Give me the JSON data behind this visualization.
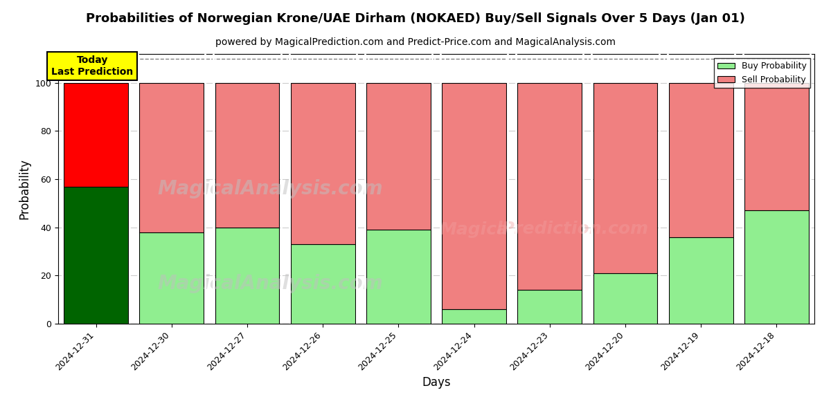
{
  "title": "Probabilities of Norwegian Krone/UAE Dirham (NOKAED) Buy/Sell Signals Over 5 Days (Jan 01)",
  "subtitle": "powered by MagicalPrediction.com and Predict-Price.com and MagicalAnalysis.com",
  "xlabel": "Days",
  "ylabel": "Probability",
  "dates": [
    "2024-12-31",
    "2024-12-30",
    "2024-12-27",
    "2024-12-26",
    "2024-12-25",
    "2024-12-24",
    "2024-12-23",
    "2024-12-20",
    "2024-12-19",
    "2024-12-18"
  ],
  "buy_values": [
    57,
    38,
    40,
    33,
    39,
    6,
    14,
    21,
    36,
    47
  ],
  "sell_values": [
    43,
    62,
    60,
    67,
    61,
    94,
    86,
    79,
    64,
    53
  ],
  "buy_colors": [
    "#006400",
    "#90EE90",
    "#90EE90",
    "#90EE90",
    "#90EE90",
    "#90EE90",
    "#90EE90",
    "#90EE90",
    "#90EE90",
    "#90EE90"
  ],
  "sell_colors": [
    "#FF0000",
    "#F08080",
    "#F08080",
    "#F08080",
    "#F08080",
    "#F08080",
    "#F08080",
    "#F08080",
    "#F08080",
    "#F08080"
  ],
  "legend_buy_color": "#90EE90",
  "legend_sell_color": "#F08080",
  "ylim": [
    0,
    112
  ],
  "dashed_line_y": 110,
  "annotation_text": "Today\nLast Prediction",
  "annotation_bg": "#FFFF00",
  "grid_color": "#cccccc",
  "bar_edge_color": "#000000",
  "bar_width": 0.85,
  "title_fontsize": 13,
  "subtitle_fontsize": 10,
  "axis_label_fontsize": 12,
  "tick_fontsize": 9
}
